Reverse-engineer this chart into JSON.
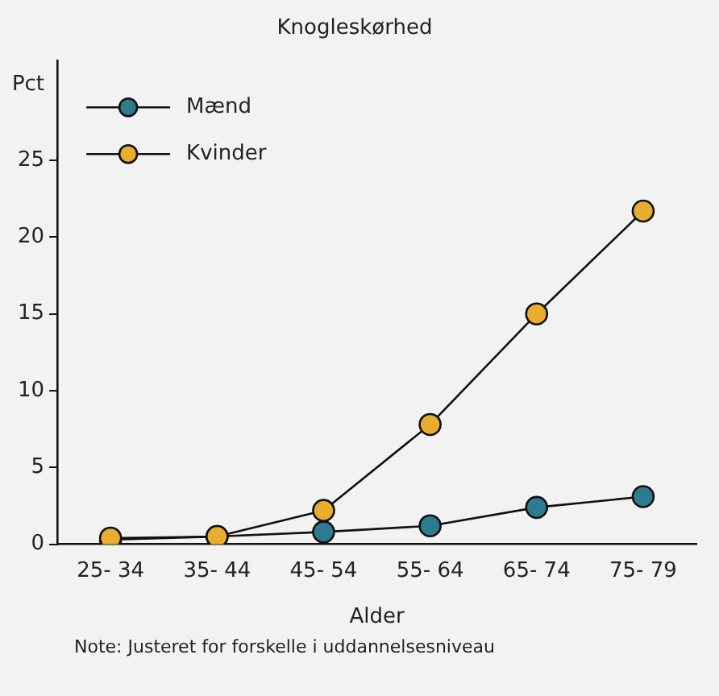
{
  "chart_data": {
    "type": "line",
    "title": "Knogleskørhed",
    "xlabel": "Alder",
    "ylabel": "Pct",
    "categories": [
      "25- 34",
      "35- 44",
      "45- 54",
      "55- 64",
      "65- 74",
      "75- 79"
    ],
    "series": [
      {
        "name": "Mænd",
        "color": "#2e7a8f",
        "values": [
          0.3,
          0.5,
          0.8,
          1.2,
          2.4,
          3.1
        ]
      },
      {
        "name": "Kvinder",
        "color": "#e8ac2e",
        "values": [
          0.4,
          0.5,
          2.2,
          7.8,
          15.0,
          21.7
        ]
      }
    ],
    "ylim": [
      0,
      31.5
    ],
    "yticks": [
      0,
      5,
      10,
      15,
      20,
      25
    ],
    "grid": false,
    "legend": "top left",
    "marker": "circle",
    "line_style": "solid",
    "annotations": [
      "Note: Justeret for forskelle i uddannelsesniveau"
    ]
  }
}
